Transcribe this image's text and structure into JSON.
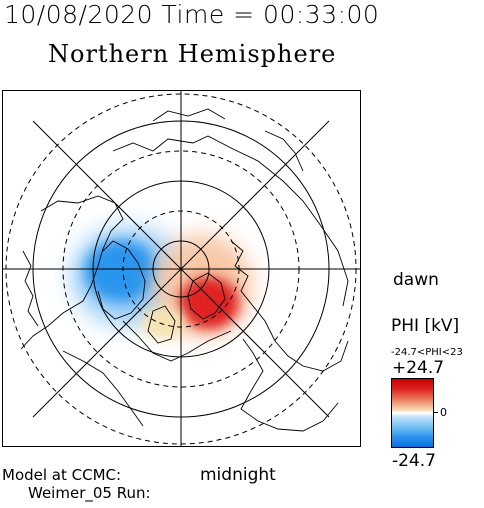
{
  "header": {
    "datetime": "10/08/2020 Time = 00:33:00",
    "title": "Northern Hemisphere"
  },
  "map": {
    "dawn_label": "dawn",
    "midnight_label": "midnight",
    "colors": {
      "positive": "#e02222",
      "negative": "#1f8cf0",
      "line": "#000000"
    }
  },
  "colorbar": {
    "title": "PHI [kV]",
    "range_text": "-24.7<PHI<23",
    "max_label": "+24.7",
    "zero_label": "0",
    "min_label": "-24.7"
  },
  "footer": {
    "model_label": "Model at CCMC:",
    "run_label": "Weimer_05 Run:"
  }
}
